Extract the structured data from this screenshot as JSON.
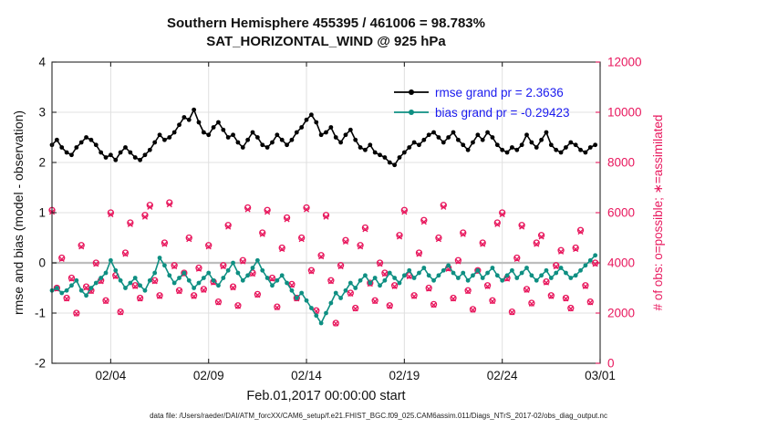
{
  "title": {
    "line1": "Southern Hemisphere 455395 / 461006 = 98.783%",
    "line2": "SAT_HORIZONTAL_WIND @ 925 hPa"
  },
  "legend": {
    "rmse_label": "rmse grand pr = 2.3636",
    "bias_label": "bias grand pr = -0.29423"
  },
  "axes": {
    "xlabel": "Feb.01,2017 00:00:00 start",
    "ylabel_left": "rmse and bias (model - observation)",
    "ylabel_right": "# of obs: o=possible; ∗=assimilated"
  },
  "footer": "data file: /Users/raeder/DAI/ATM_forcXX/CAM6_setup/f.e21.FHIST_BGC.f09_025.CAM6assim.011/Diags_NTrS_2017-02/obs_diag_output.nc",
  "colors": {
    "rmse": "#000000",
    "bias": "#0e8f82",
    "obs": "#e8175d",
    "grid": "#e0e0e0",
    "zero_line": "#bdbdbd",
    "axis": "#262626",
    "legend_text": "#1a1aee",
    "right_axis": "#e8175d"
  },
  "chart_data": {
    "type": "line",
    "x_range_days": 28,
    "x_step_days": 0.25,
    "x_tick_days": [
      3,
      8,
      13,
      18,
      23,
      28
    ],
    "x_tick_labels": [
      "02/04",
      "02/09",
      "02/14",
      "02/19",
      "02/24",
      "03/01"
    ],
    "ylim_left": [
      -2,
      4
    ],
    "ylim_right": [
      0,
      12000
    ],
    "y_left_ticks": [
      -2,
      -1,
      0,
      1,
      2,
      3,
      4
    ],
    "y_right_ticks": [
      0,
      2000,
      4000,
      6000,
      8000,
      10000,
      12000
    ],
    "grand_rmse": 2.3636,
    "grand_bias": -0.29423,
    "assimilated_ratio": 0.98783,
    "series": [
      {
        "name": "rmse",
        "values": [
          2.35,
          2.45,
          2.3,
          2.2,
          2.15,
          2.3,
          2.4,
          2.5,
          2.45,
          2.35,
          2.2,
          2.1,
          2.15,
          2.05,
          2.2,
          2.3,
          2.2,
          2.1,
          2.05,
          2.15,
          2.25,
          2.4,
          2.55,
          2.45,
          2.5,
          2.6,
          2.75,
          2.9,
          2.85,
          3.05,
          2.8,
          2.6,
          2.55,
          2.7,
          2.8,
          2.65,
          2.5,
          2.55,
          2.4,
          2.3,
          2.45,
          2.6,
          2.5,
          2.35,
          2.3,
          2.4,
          2.55,
          2.45,
          2.35,
          2.45,
          2.6,
          2.7,
          2.85,
          2.95,
          2.8,
          2.55,
          2.6,
          2.7,
          2.5,
          2.4,
          2.55,
          2.65,
          2.45,
          2.3,
          2.25,
          2.35,
          2.2,
          2.15,
          2.1,
          2.0,
          1.95,
          2.1,
          2.2,
          2.3,
          2.4,
          2.35,
          2.45,
          2.55,
          2.6,
          2.5,
          2.4,
          2.5,
          2.6,
          2.45,
          2.35,
          2.25,
          2.4,
          2.55,
          2.45,
          2.6,
          2.5,
          2.35,
          2.25,
          2.2,
          2.3,
          2.25,
          2.35,
          2.55,
          2.4,
          2.3,
          2.45,
          2.6,
          2.35,
          2.25,
          2.2,
          2.3,
          2.4,
          2.35,
          2.25,
          2.2,
          2.3,
          2.35
        ]
      },
      {
        "name": "bias",
        "values": [
          -0.55,
          -0.5,
          -0.6,
          -0.55,
          -0.45,
          -0.35,
          -0.55,
          -0.65,
          -0.5,
          -0.4,
          -0.3,
          -0.2,
          0.05,
          -0.15,
          -0.35,
          -0.5,
          -0.4,
          -0.3,
          -0.45,
          -0.55,
          -0.35,
          -0.2,
          0.1,
          -0.05,
          -0.25,
          -0.4,
          -0.3,
          -0.2,
          -0.35,
          -0.5,
          -0.4,
          -0.3,
          -0.2,
          -0.35,
          -0.45,
          -0.3,
          -0.15,
          0.0,
          -0.2,
          -0.35,
          -0.25,
          -0.1,
          0.05,
          -0.15,
          -0.3,
          -0.45,
          -0.35,
          -0.25,
          -0.4,
          -0.55,
          -0.7,
          -0.6,
          -0.75,
          -0.9,
          -1.05,
          -1.2,
          -1.0,
          -0.8,
          -0.6,
          -0.7,
          -0.55,
          -0.4,
          -0.5,
          -0.35,
          -0.25,
          -0.4,
          -0.3,
          -0.45,
          -0.35,
          -0.2,
          -0.3,
          -0.4,
          -0.25,
          -0.15,
          -0.3,
          -0.2,
          -0.1,
          -0.25,
          -0.35,
          -0.25,
          -0.15,
          -0.05,
          -0.2,
          -0.3,
          -0.2,
          -0.35,
          -0.25,
          -0.15,
          -0.3,
          -0.2,
          -0.1,
          -0.25,
          -0.35,
          -0.25,
          -0.15,
          -0.3,
          -0.2,
          -0.1,
          -0.25,
          -0.35,
          -0.25,
          -0.15,
          -0.3,
          -0.2,
          -0.1,
          -0.2,
          -0.3,
          -0.25,
          -0.15,
          -0.05,
          0.05,
          0.15
        ]
      },
      {
        "name": "obs_possible",
        "values": [
          6100,
          3000,
          4200,
          2600,
          3400,
          2000,
          4700,
          3050,
          2900,
          4000,
          3300,
          2500,
          6000,
          3500,
          2050,
          4400,
          5600,
          3100,
          2600,
          5900,
          6300,
          3300,
          2700,
          4800,
          6400,
          3900,
          2900,
          3600,
          5000,
          2700,
          3800,
          2950,
          4700,
          3250,
          2450,
          3900,
          5500,
          3050,
          2300,
          4100,
          6200,
          3600,
          2750,
          5200,
          6100,
          3400,
          2250,
          4600,
          5800,
          3150,
          2600,
          5000,
          6200,
          3700,
          2100,
          4300,
          5900,
          3300,
          1600,
          3900,
          4900,
          2800,
          2200,
          4700,
          5400,
          3200,
          2500,
          4000,
          3600,
          2300,
          3100,
          5100,
          6100,
          3500,
          2700,
          4400,
          5700,
          3000,
          2350,
          5000,
          6300,
          3800,
          2600,
          4100,
          5200,
          2900,
          2150,
          3700,
          4800,
          3100,
          2500,
          5600,
          6000,
          3400,
          2050,
          4200,
          5500,
          2950,
          2400,
          4800,
          5100,
          3250,
          2700,
          3900,
          4500,
          2600,
          2200,
          4600,
          5300,
          3100,
          2450,
          4000
        ]
      }
    ]
  }
}
